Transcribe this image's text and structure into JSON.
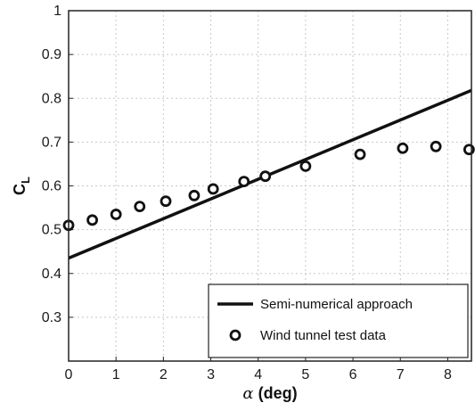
{
  "chart_data": {
    "type": "scatter",
    "title": "",
    "xlabel": "α (deg)",
    "ylabel": "CL",
    "xlim": [
      0,
      8.5
    ],
    "ylim": [
      0.2,
      1.0
    ],
    "grid": true,
    "legend_position": "bottom-right",
    "x_ticks": [
      "0",
      "1",
      "2",
      "3",
      "4",
      "5",
      "6",
      "7",
      "8"
    ],
    "y_ticks": [
      "0.3",
      "0.4",
      "0.5",
      "0.6",
      "0.7",
      "0.8",
      "0.9",
      "1"
    ],
    "series": [
      {
        "name": "Semi-numerical approach",
        "type": "line",
        "color": "#111111",
        "x": [
          0,
          8.5
        ],
        "y": [
          0.435,
          0.818
        ]
      },
      {
        "name": "Wind tunnel test data",
        "type": "scatter",
        "marker": "circle-open",
        "color": "#111111",
        "x": [
          0.0,
          0.5,
          1.0,
          1.5,
          2.05,
          2.65,
          3.05,
          3.7,
          4.15,
          5.0,
          6.15,
          7.05,
          7.75,
          8.45
        ],
        "y": [
          0.51,
          0.522,
          0.535,
          0.553,
          0.565,
          0.578,
          0.593,
          0.61,
          0.622,
          0.645,
          0.672,
          0.686,
          0.69,
          0.683
        ]
      }
    ]
  }
}
